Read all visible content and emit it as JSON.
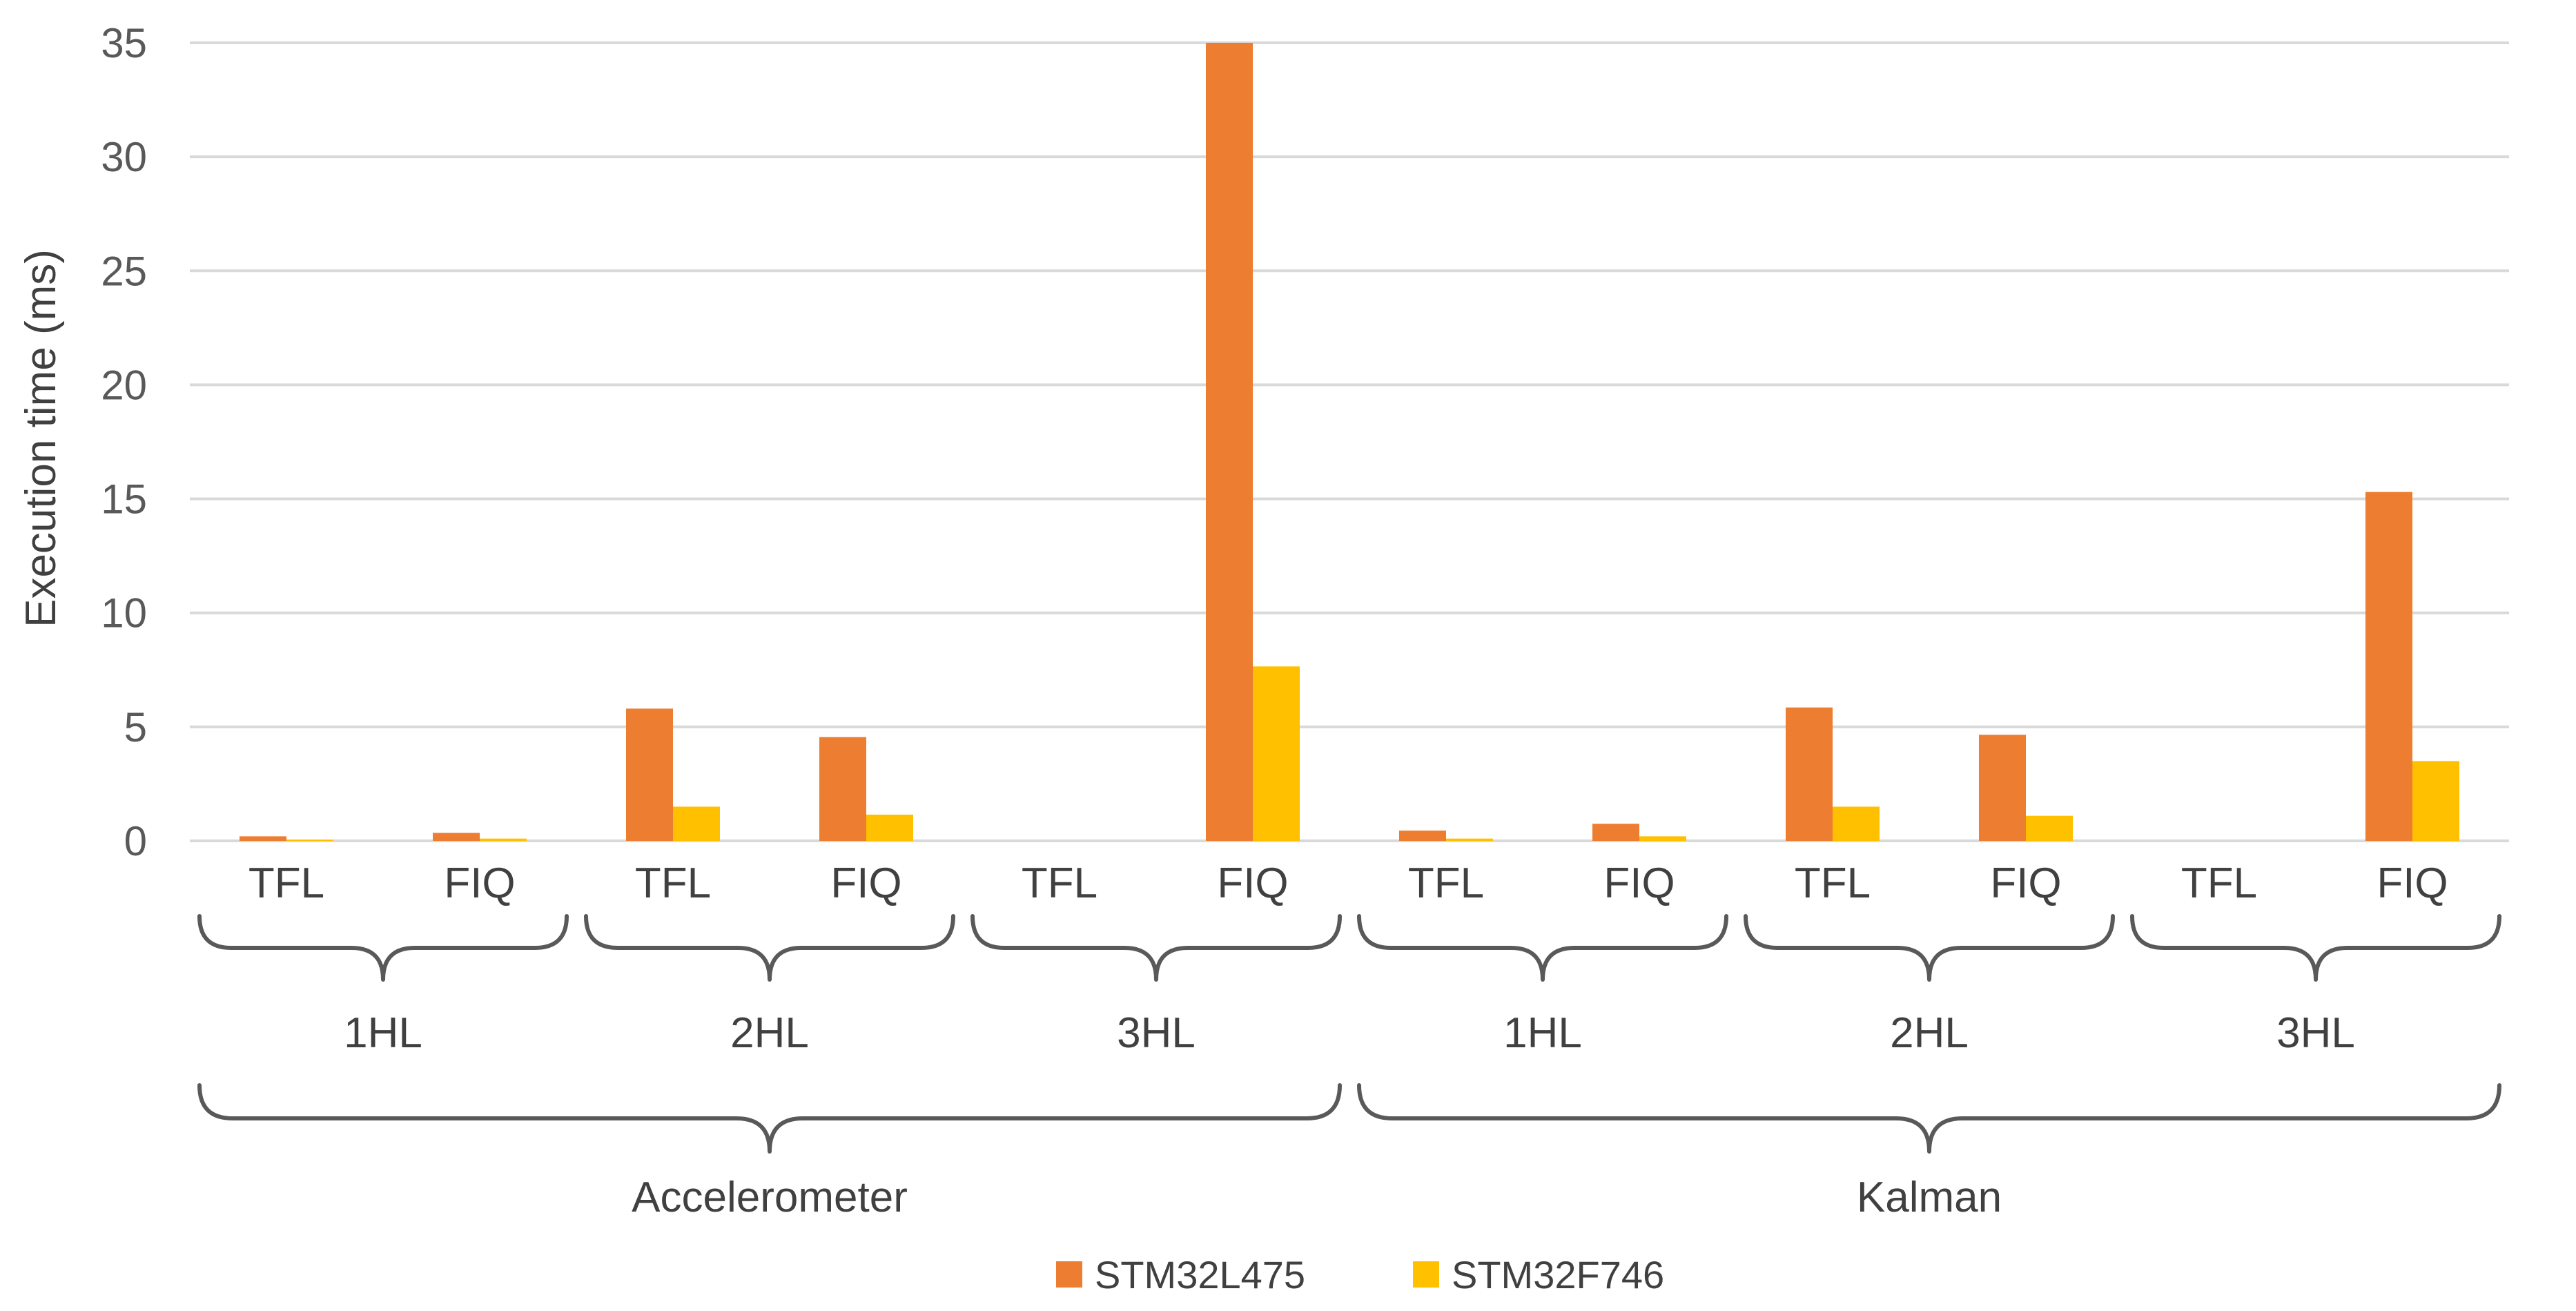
{
  "chart_data": {
    "type": "bar",
    "ylabel": "Execution time (ms)",
    "ylim": [
      0,
      35
    ],
    "yticks": [
      0,
      5,
      10,
      15,
      20,
      25,
      30,
      35
    ],
    "grid": true,
    "legend_position": "bottom-center",
    "colors": {
      "STM32L475": "#ED7D31",
      "STM32F746": "#FFC000",
      "grid": "#D9D9D9",
      "brace": "#595959"
    },
    "groups": [
      {
        "name": "Accelerometer",
        "subgroups": [
          {
            "name": "1HL",
            "categories": [
              "TFL",
              "FIQ"
            ]
          },
          {
            "name": "2HL",
            "categories": [
              "TFL",
              "FIQ"
            ]
          },
          {
            "name": "3HL",
            "categories": [
              "TFL",
              "FIQ"
            ]
          }
        ]
      },
      {
        "name": "Kalman",
        "subgroups": [
          {
            "name": "1HL",
            "categories": [
              "TFL",
              "FIQ"
            ]
          },
          {
            "name": "2HL",
            "categories": [
              "TFL",
              "FIQ"
            ]
          },
          {
            "name": "3HL",
            "categories": [
              "TFL",
              "FIQ"
            ]
          }
        ]
      }
    ],
    "series": [
      {
        "name": "STM32L475",
        "values": [
          0.2,
          0.35,
          5.8,
          4.55,
          0,
          35,
          0.45,
          0.75,
          5.85,
          4.65,
          0,
          15.3
        ]
      },
      {
        "name": "STM32F746",
        "values": [
          0.05,
          0.1,
          1.5,
          1.15,
          0,
          7.65,
          0.1,
          0.2,
          1.5,
          1.1,
          0,
          3.5
        ]
      }
    ]
  }
}
